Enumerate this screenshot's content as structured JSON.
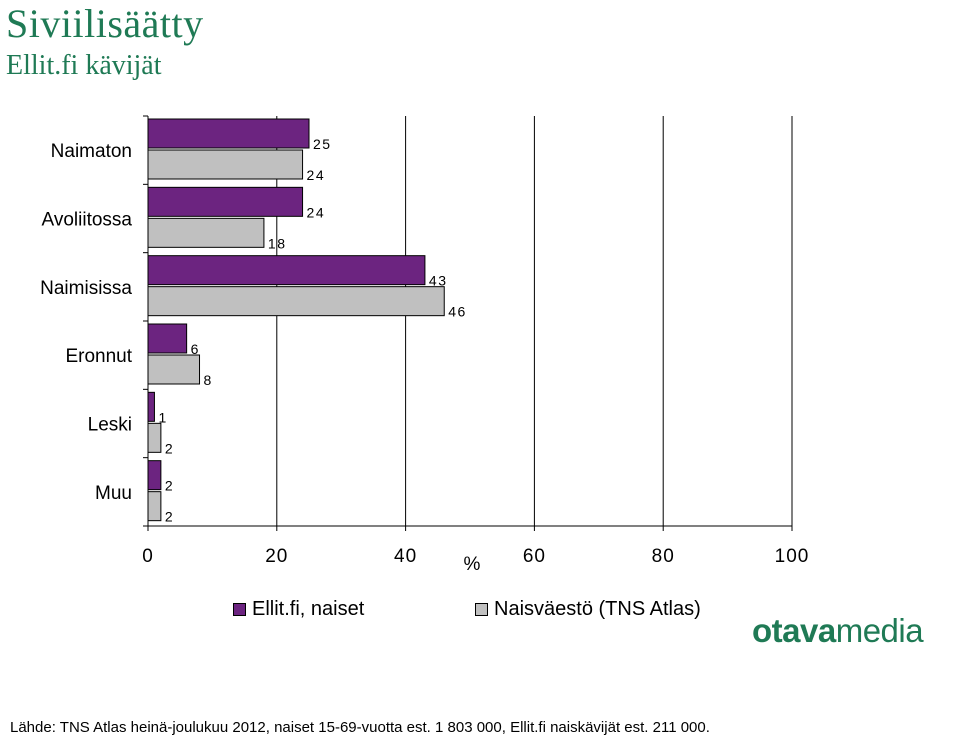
{
  "header": {
    "title": "Siviilisäätty",
    "subtitle": "Ellit.fi kävijät"
  },
  "chart_data": {
    "type": "bar",
    "orientation": "horizontal",
    "title": "Siviilisäätty",
    "subtitle": "Ellit.fi kävijät",
    "xlabel": "%",
    "ylabel": "",
    "xlim": [
      0,
      100
    ],
    "xticks": [
      0,
      20,
      40,
      60,
      80,
      100
    ],
    "grid": true,
    "legend_position": "bottom",
    "categories": [
      "Naimaton",
      "Avoliitossa",
      "Naimisissa",
      "Eronnut",
      "Leski",
      "Muu"
    ],
    "series": [
      {
        "name": "Ellit.fi, naiset",
        "color": "#6c2480",
        "values": [
          25,
          24,
          43,
          6,
          1,
          2
        ]
      },
      {
        "name": "Naisväestö (TNS Atlas)",
        "color": "#c0c0c0",
        "values": [
          24,
          18,
          46,
          8,
          2,
          2
        ]
      }
    ]
  },
  "logo": {
    "part1": "otava",
    "part2": "media"
  },
  "footer": {
    "source": "Lähde: TNS Atlas heinä-joulukuu 2012, naiset 15-69-vuotta est. 1 803 000, Ellit.fi naiskävijät est. 211 000."
  }
}
